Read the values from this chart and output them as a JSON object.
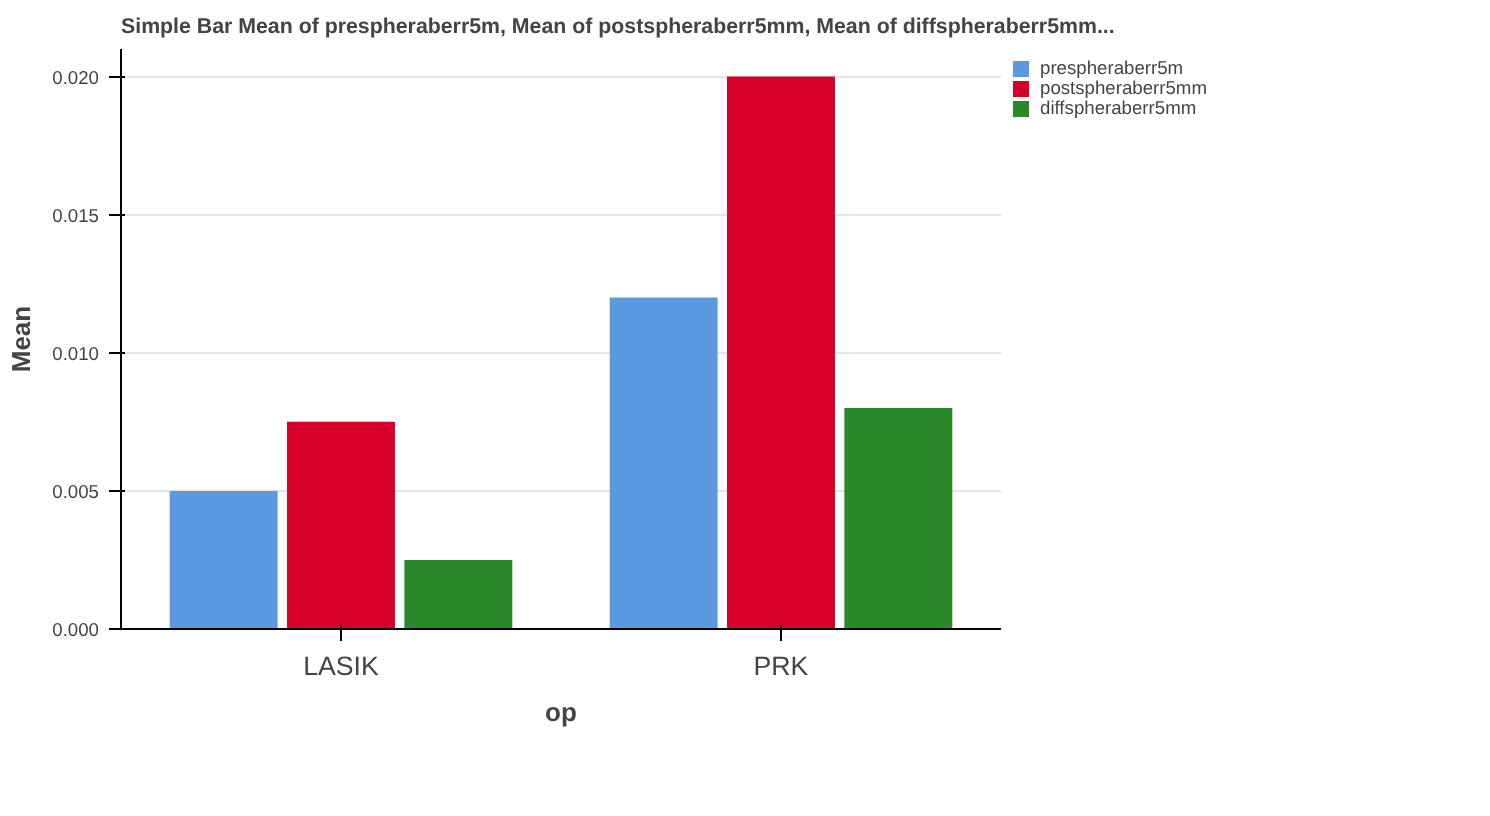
{
  "chart_data": {
    "type": "bar",
    "title": "Simple Bar Mean of prespheraberr5m, Mean of postspheraberr5mm, Mean of diffspheraberr5mm...",
    "xlabel": "op",
    "ylabel": "Mean",
    "categories": [
      "LASIK",
      "PRK"
    ],
    "series": [
      {
        "name": "prespheraberr5m",
        "color": "#5b9ae0",
        "values": [
          0.005,
          0.012
        ]
      },
      {
        "name": "postspheraberr5mm",
        "color": "#d6002a",
        "values": [
          0.0075,
          0.02
        ]
      },
      {
        "name": "diffspheraberr5mm",
        "color": "#2a8a2a",
        "values": [
          0.0025,
          0.008
        ]
      }
    ],
    "ylim": [
      0,
      0.021
    ],
    "yticks": [
      {
        "value": 0,
        "label": "0.000"
      },
      {
        "value": 0.005,
        "label": "0.005"
      },
      {
        "value": 0.01,
        "label": "0.010"
      },
      {
        "value": 0.015,
        "label": "0.015"
      },
      {
        "value": 0.02,
        "label": "0.020"
      }
    ],
    "grid": "y",
    "legend": "top right"
  }
}
